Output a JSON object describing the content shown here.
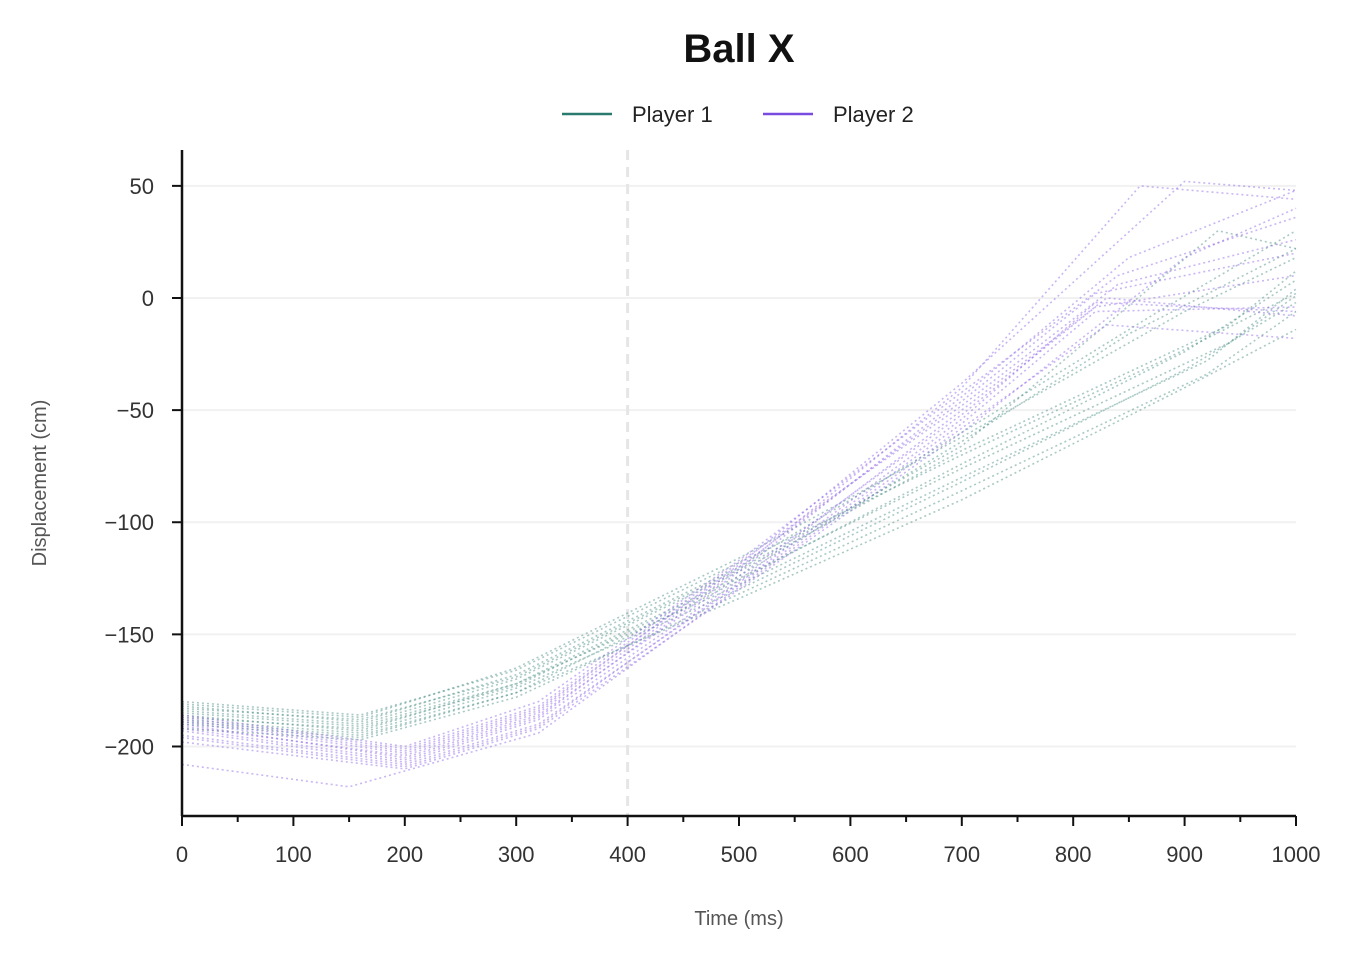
{
  "chart_data": {
    "type": "line",
    "title": "Ball X",
    "xlabel": "Time (ms)",
    "ylabel": "Displacement (cm)",
    "xlim": [
      0,
      1000
    ],
    "ylim": [
      -231,
      66
    ],
    "x_ticks": [
      0,
      100,
      200,
      300,
      400,
      500,
      600,
      700,
      800,
      900,
      1000
    ],
    "x_tick_labels": [
      "0",
      "100",
      "200",
      "300",
      "400",
      "500",
      "600",
      "700",
      "800",
      "900",
      "1000"
    ],
    "y_ticks": [
      50,
      0,
      -50,
      -100,
      -150,
      -200
    ],
    "y_tick_labels": [
      "50",
      "0",
      "−50",
      "−100",
      "−150",
      "−200"
    ],
    "grid": "horizontal",
    "legend_position": "top-center",
    "reference_line": {
      "x": 400,
      "style": "dashed"
    },
    "series": [
      {
        "name": "Player 1",
        "color": "#2a7a6f",
        "trials": [
          {
            "x": [
              0,
              160,
              300,
              500,
              700,
              850,
              1000
            ],
            "y": [
              -186,
              -193,
              -172,
              -124,
              -64,
              -16,
              22
            ]
          },
          {
            "x": [
              0,
              160,
              300,
              500,
              700,
              870,
              1000
            ],
            "y": [
              -182,
              -189,
              -168,
              -120,
              -60,
              -8,
              30
            ]
          },
          {
            "x": [
              0,
              160,
              300,
              500,
              700,
              880,
              1000
            ],
            "y": [
              -180,
              -186,
              -166,
              -118,
              -70,
              -28,
              2
            ]
          },
          {
            "x": [
              0,
              160,
              300,
              500,
              700,
              900,
              1000
            ],
            "y": [
              -190,
              -196,
              -176,
              -126,
              -74,
              -24,
              8
            ]
          },
          {
            "x": [
              0,
              160,
              300,
              500,
              700,
              900,
              1000
            ],
            "y": [
              -188,
              -194,
              -174,
              -130,
              -82,
              -32,
              -2
            ]
          },
          {
            "x": [
              0,
              160,
              300,
              500,
              700,
              920,
              1000
            ],
            "y": [
              -185,
              -191,
              -172,
              -128,
              -80,
              -28,
              4
            ]
          },
          {
            "x": [
              0,
              160,
              300,
              500,
              700,
              920,
              1000
            ],
            "y": [
              -192,
              -197,
              -178,
              -132,
              -86,
              -34,
              -6
            ]
          },
          {
            "x": [
              0,
              160,
              300,
              500,
              700,
              940,
              1000
            ],
            "y": [
              -184,
              -190,
              -170,
              -122,
              -68,
              -12,
              12
            ]
          },
          {
            "x": [
              0,
              160,
              300,
              500,
              700,
              940,
              1000
            ],
            "y": [
              -187,
              -192,
              -173,
              -125,
              -76,
              -20,
              1
            ]
          },
          {
            "x": [
              0,
              160,
              300,
              500,
              700,
              930,
              1000
            ],
            "y": [
              -183,
              -188,
              -169,
              -121,
              -66,
              30,
              22
            ]
          },
          {
            "x": [
              0,
              160,
              300,
              500,
              700,
              900,
              1000
            ],
            "y": [
              -189,
              -195,
              -176,
              -134,
              -90,
              -40,
              -14
            ]
          },
          {
            "x": [
              0,
              160,
              300,
              500,
              700,
              900,
              1000
            ],
            "y": [
              -181,
              -187,
              -165,
              -116,
              -62,
              -6,
              18
            ]
          }
        ]
      },
      {
        "name": "Player 2",
        "color": "#7a4be0",
        "trials": [
          {
            "x": [
              0,
              200,
              320,
              500,
              700,
              820,
              1000
            ],
            "y": [
              -190,
              -205,
              -186,
              -124,
              -52,
              -4,
              10
            ]
          },
          {
            "x": [
              0,
              200,
              320,
              500,
              700,
              820,
              1000
            ],
            "y": [
              -195,
              -208,
              -190,
              -128,
              -56,
              -6,
              -4
            ]
          },
          {
            "x": [
              0,
              200,
              320,
              500,
              700,
              820,
              1000
            ],
            "y": [
              -188,
              -202,
              -183,
              -120,
              -46,
              2,
              20
            ]
          },
          {
            "x": [
              0,
              200,
              320,
              500,
              700,
              830,
              1000
            ],
            "y": [
              -193,
              -207,
              -188,
              -126,
              -50,
              0,
              -8
            ]
          },
          {
            "x": [
              0,
              200,
              320,
              500,
              700,
              840,
              1000
            ],
            "y": [
              -186,
              -200,
              -180,
              -117,
              -42,
              10,
              36
            ]
          },
          {
            "x": [
              0,
              200,
              320,
              500,
              700,
              850,
              1000
            ],
            "y": [
              -192,
              -206,
              -187,
              -122,
              -44,
              18,
              48
            ]
          },
          {
            "x": [
              0,
              200,
              320,
              500,
              700,
              900,
              1000
            ],
            "y": [
              -198,
              -210,
              -192,
              -130,
              -60,
              18,
              40
            ]
          },
          {
            "x": [
              0,
              200,
              320,
              500,
              700,
              860,
              1000
            ],
            "y": [
              -191,
              -204,
              -185,
              -121,
              -40,
              50,
              44
            ]
          },
          {
            "x": [
              0,
              200,
              320,
              500,
              700,
              900,
              1000
            ],
            "y": [
              -189,
              -203,
              -184,
              -119,
              -38,
              52,
              48
            ]
          },
          {
            "x": [
              0,
              200,
              320,
              500,
              700,
              820,
              1000
            ],
            "y": [
              -196,
              -209,
              -191,
              -127,
              -54,
              -2,
              -6
            ]
          },
          {
            "x": [
              0,
              150,
              320,
              500,
              700,
              830,
              1000
            ],
            "y": [
              -208,
              -218,
              -194,
              -129,
              -58,
              -12,
              -18
            ]
          },
          {
            "x": [
              0,
              200,
              320,
              500,
              700,
              840,
              1000
            ],
            "y": [
              -187,
              -201,
              -182,
              -118,
              -48,
              6,
              26
            ]
          }
        ]
      }
    ]
  }
}
